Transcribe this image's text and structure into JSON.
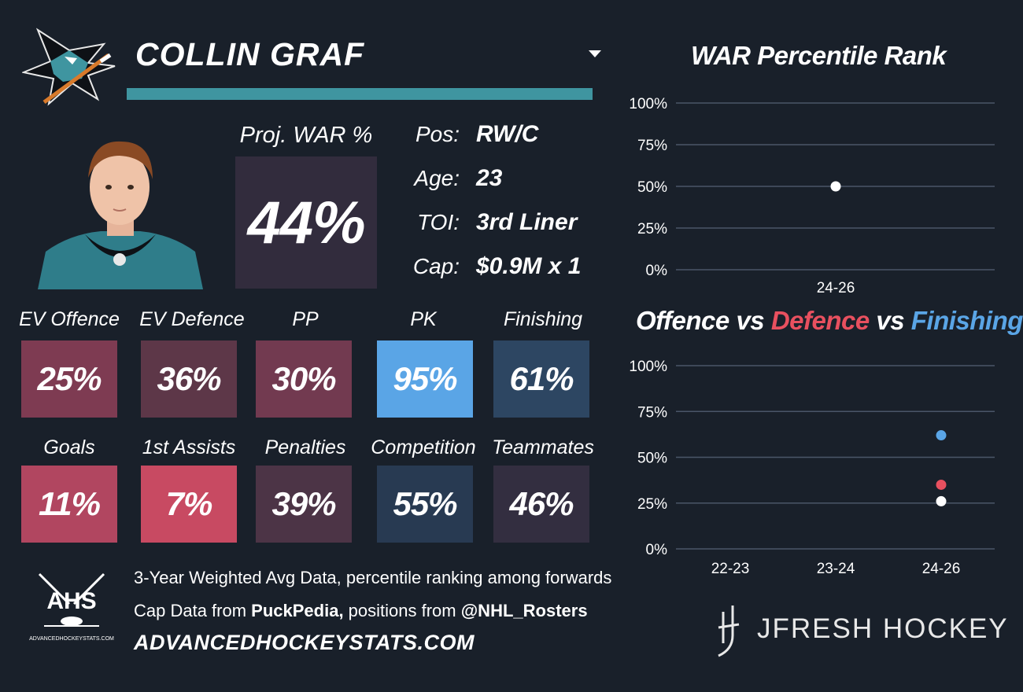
{
  "player": {
    "name": "COLLIN GRAF",
    "proj_label": "Proj. WAR %",
    "proj_value": "44%"
  },
  "info": [
    {
      "label": "Pos:",
      "value": "RW/C"
    },
    {
      "label": "Age:",
      "value": "23"
    },
    {
      "label": "TOI:",
      "value": "3rd Liner"
    },
    {
      "label": "Cap:",
      "value": "$0.9M x 1"
    }
  ],
  "stats_row1": [
    {
      "label": "EV Offence",
      "value": "25%",
      "color": "#7e3b52"
    },
    {
      "label": "EV Defence",
      "value": "36%",
      "color": "#5d3748"
    },
    {
      "label": "PP",
      "value": "30%",
      "color": "#723a50"
    },
    {
      "label": "PK",
      "value": "95%",
      "color": "#5aa5e6"
    },
    {
      "label": "Finishing",
      "value": "61%",
      "color": "#2d4662"
    }
  ],
  "stats_row2": [
    {
      "label": "Goals",
      "value": "11%",
      "color": "#b14660"
    },
    {
      "label": "1st Assists",
      "value": "7%",
      "color": "#c84a62"
    },
    {
      "label": "Penalties",
      "value": "39%",
      "color": "#4c3446"
    },
    {
      "label": "Competition",
      "value": "55%",
      "color": "#283a52"
    },
    {
      "label": "Teammates",
      "value": "46%",
      "color": "#332e40"
    }
  ],
  "chart1": {
    "title": "WAR Percentile Rank"
  },
  "chart2": {
    "title_parts": {
      "offence": "Offence",
      "vs1": " vs ",
      "defence": "Defence",
      "vs2": " vs ",
      "finishing": "Finishing"
    }
  },
  "colors": {
    "background": "#19202a",
    "accent_bar": "#3f95a0",
    "defence": "#e8505f",
    "finishing": "#5aa5e6",
    "offence": "#ffffff",
    "gridline": "#4a5668"
  },
  "chart_data": [
    {
      "type": "scatter",
      "title": "WAR Percentile Rank",
      "categories": [
        "24-26"
      ],
      "series": [
        {
          "values": [
            50
          ]
        }
      ],
      "y_ticks": [
        "100%",
        "75%",
        "50%",
        "25%",
        "0%"
      ],
      "ylim": [
        0,
        100
      ],
      "grid": true
    },
    {
      "type": "scatter",
      "title": "Offence vs Defence vs Finishing",
      "categories": [
        "22-23",
        "23-24",
        "24-26"
      ],
      "series": [
        {
          "name": "Offence",
          "values": [
            null,
            null,
            26
          ],
          "color": "#ffffff"
        },
        {
          "name": "Defence",
          "values": [
            null,
            null,
            35
          ],
          "color": "#e8505f"
        },
        {
          "name": "Finishing",
          "values": [
            null,
            null,
            62
          ],
          "color": "#5aa5e6"
        }
      ],
      "y_ticks": [
        "100%",
        "75%",
        "50%",
        "25%",
        "0%"
      ],
      "ylim": [
        0,
        100
      ],
      "grid": true
    }
  ],
  "footer": {
    "ahs_text": "AHS",
    "ahs_small": "ADVANCEDHOCKEYSTATS.COM",
    "line1": "3-Year Weighted Avg Data, percentile ranking among forwards",
    "line2_pre": "Cap Data from ",
    "line2_b1": "PuckPedia,",
    "line2_mid": " positions from ",
    "line2_b2": "@NHL_Rosters",
    "site": "ADVANCEDHOCKEYSTATS.COM",
    "brand": "JFRESH HOCKEY"
  }
}
